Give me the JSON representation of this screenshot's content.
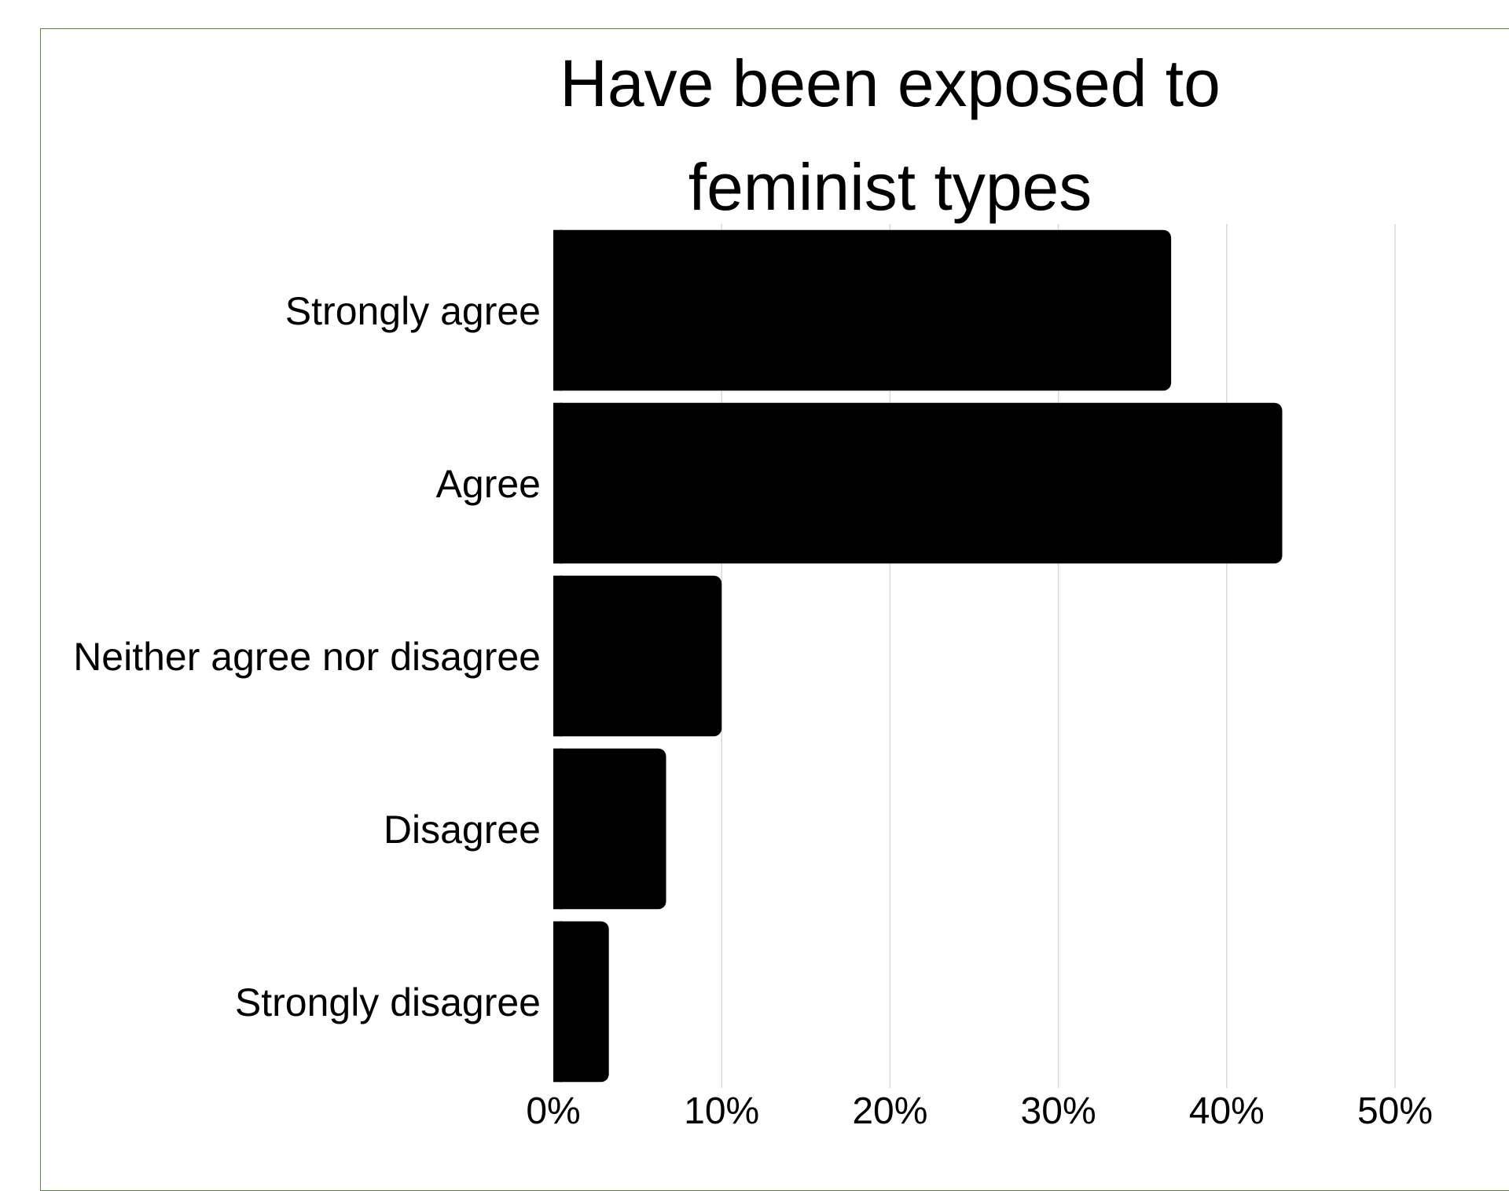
{
  "chart_data": {
    "type": "bar",
    "orientation": "horizontal",
    "title_lines": [
      "Have been exposed to",
      "feminist types"
    ],
    "categories": [
      "Strongly agree",
      "Agree",
      "Neither agree nor disagree",
      "Disagree",
      "Strongly disagree"
    ],
    "values": [
      36.7,
      43.3,
      10.0,
      6.7,
      3.3
    ],
    "unit": "%",
    "xlim": [
      0,
      50
    ],
    "x_ticks": [
      "0%",
      "10%",
      "20%",
      "30%",
      "40%",
      "50%"
    ],
    "grid": true,
    "legend": "none",
    "bar_color": "#000000",
    "grid_color": "#d9d9d9",
    "frame_color": "#5a8a3c"
  }
}
